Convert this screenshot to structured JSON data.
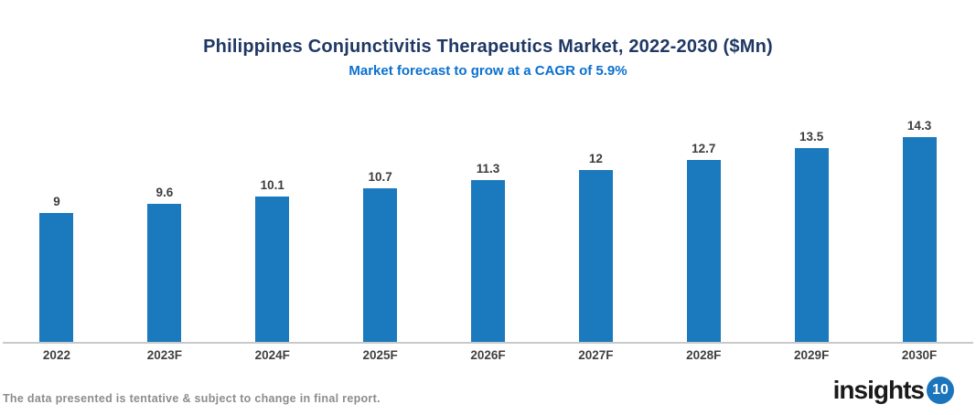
{
  "header": {
    "title": "Philippines Conjunctivitis Therapeutics Market, 2022-2030 ($Mn)",
    "subtitle": "Market forecast to grow at a CAGR of 5.9%"
  },
  "chart_data": {
    "type": "bar",
    "title": "Philippines Conjunctivitis Therapeutics Market, 2022-2030 ($Mn)",
    "subtitle": "Market forecast to grow at a CAGR of 5.9%",
    "categories": [
      "2022",
      "2023F",
      "2024F",
      "2025F",
      "2026F",
      "2027F",
      "2028F",
      "2029F",
      "2030F"
    ],
    "values": [
      9,
      9.6,
      10.1,
      10.7,
      11.3,
      12,
      12.7,
      13.5,
      14.3
    ],
    "value_labels": [
      "9",
      "9.6",
      "10.1",
      "10.7",
      "11.3",
      "12",
      "12.7",
      "13.5",
      "14.3"
    ],
    "xlabel": "",
    "ylabel": "",
    "ylim": [
      0,
      15.5
    ],
    "grid": false,
    "legend": "none",
    "bar_color": "#1b79be"
  },
  "colors": {
    "title": "#1f3864",
    "subtitle": "#0a70d0",
    "bar": "#1b79be",
    "axis_line": "#c9c9c9",
    "axis_label": "#3f3f3f",
    "footnote": "#8c8c8c",
    "logo_circle": "#1b75bc",
    "logo_text": "#1a1a1a"
  },
  "footer": {
    "note": "The data presented is tentative & subject to change in final report.",
    "logo_text": "insights",
    "logo_badge": "10"
  }
}
